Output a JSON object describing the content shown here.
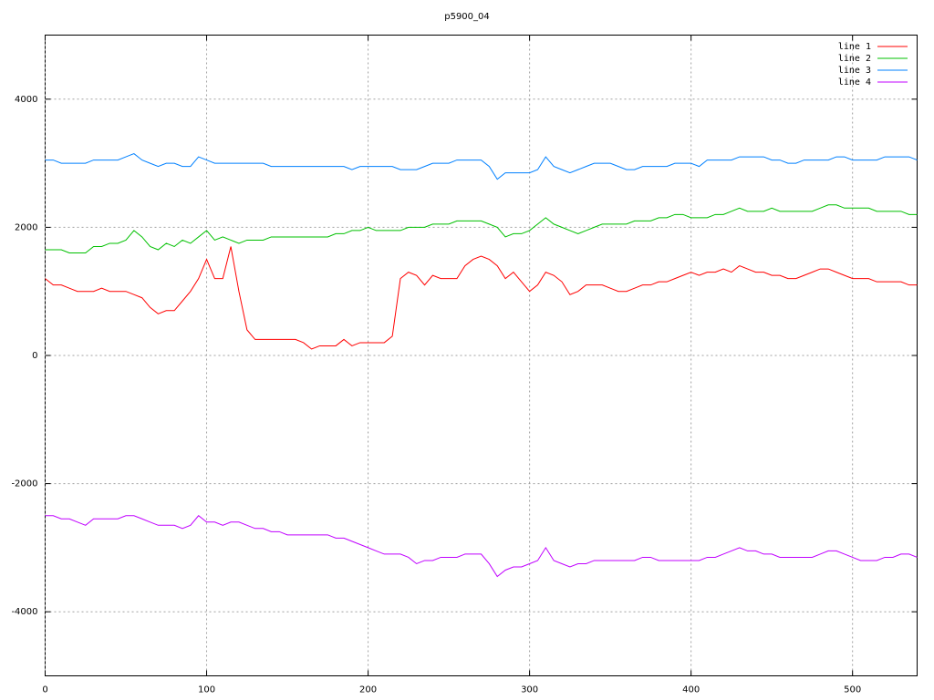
{
  "chart_data": {
    "type": "line",
    "title": "p5900_04",
    "x": [
      0,
      5,
      10,
      15,
      20,
      25,
      30,
      35,
      40,
      45,
      50,
      55,
      60,
      65,
      70,
      75,
      80,
      85,
      90,
      95,
      100,
      105,
      110,
      115,
      120,
      125,
      130,
      135,
      140,
      145,
      150,
      155,
      160,
      165,
      170,
      175,
      180,
      185,
      190,
      195,
      200,
      205,
      210,
      215,
      220,
      225,
      230,
      235,
      240,
      245,
      250,
      255,
      260,
      265,
      270,
      275,
      280,
      285,
      290,
      295,
      300,
      305,
      310,
      315,
      320,
      325,
      330,
      335,
      340,
      345,
      350,
      355,
      360,
      365,
      370,
      375,
      380,
      385,
      390,
      395,
      400,
      405,
      410,
      415,
      420,
      425,
      430,
      435,
      440,
      445,
      450,
      455,
      460,
      465,
      470,
      475,
      480,
      485,
      490,
      495,
      500,
      505,
      510,
      515,
      520,
      525,
      530,
      535,
      540
    ],
    "series": [
      {
        "name": "line 1",
        "color": "#ff0000",
        "values": [
          1200,
          1100,
          1100,
          1050,
          1000,
          1000,
          1000,
          1050,
          1000,
          1000,
          1000,
          950,
          900,
          750,
          650,
          700,
          700,
          850,
          1000,
          1200,
          1500,
          1200,
          1200,
          1700,
          1000,
          400,
          250,
          250,
          250,
          250,
          250,
          250,
          200,
          100,
          150,
          150,
          150,
          250,
          150,
          200,
          200,
          200,
          200,
          300,
          1200,
          1300,
          1250,
          1100,
          1250,
          1200,
          1200,
          1200,
          1400,
          1500,
          1550,
          1500,
          1400,
          1200,
          1300,
          1150,
          1000,
          1100,
          1300,
          1250,
          1150,
          950,
          1000,
          1100,
          1100,
          1100,
          1050,
          1000,
          1000,
          1050,
          1100,
          1100,
          1150,
          1150,
          1200,
          1250,
          1300,
          1250,
          1300,
          1300,
          1350,
          1300,
          1400,
          1350,
          1300,
          1300,
          1250,
          1250,
          1200,
          1200,
          1250,
          1300,
          1350,
          1350,
          1300,
          1250,
          1200,
          1200,
          1200,
          1150,
          1150,
          1150,
          1150,
          1100,
          1100
        ]
      },
      {
        "name": "line 2",
        "color": "#00c000",
        "values": [
          1650,
          1650,
          1650,
          1600,
          1600,
          1600,
          1700,
          1700,
          1750,
          1750,
          1800,
          1950,
          1850,
          1700,
          1650,
          1750,
          1700,
          1800,
          1750,
          1850,
          1950,
          1800,
          1850,
          1800,
          1750,
          1800,
          1800,
          1800,
          1850,
          1850,
          1850,
          1850,
          1850,
          1850,
          1850,
          1850,
          1900,
          1900,
          1950,
          1950,
          2000,
          1950,
          1950,
          1950,
          1950,
          2000,
          2000,
          2000,
          2050,
          2050,
          2050,
          2100,
          2100,
          2100,
          2100,
          2050,
          2000,
          1850,
          1900,
          1900,
          1950,
          2050,
          2150,
          2050,
          2000,
          1950,
          1900,
          1950,
          2000,
          2050,
          2050,
          2050,
          2050,
          2100,
          2100,
          2100,
          2150,
          2150,
          2200,
          2200,
          2150,
          2150,
          2150,
          2200,
          2200,
          2250,
          2300,
          2250,
          2250,
          2250,
          2300,
          2250,
          2250,
          2250,
          2250,
          2250,
          2300,
          2350,
          2350,
          2300,
          2300,
          2300,
          2300,
          2250,
          2250,
          2250,
          2250,
          2200,
          2200
        ]
      },
      {
        "name": "line 3",
        "color": "#0080ff",
        "values": [
          3050,
          3050,
          3000,
          3000,
          3000,
          3000,
          3050,
          3050,
          3050,
          3050,
          3100,
          3150,
          3050,
          3000,
          2950,
          3000,
          3000,
          2950,
          2950,
          3100,
          3050,
          3000,
          3000,
          3000,
          3000,
          3000,
          3000,
          3000,
          2950,
          2950,
          2950,
          2950,
          2950,
          2950,
          2950,
          2950,
          2950,
          2950,
          2900,
          2950,
          2950,
          2950,
          2950,
          2950,
          2900,
          2900,
          2900,
          2950,
          3000,
          3000,
          3000,
          3050,
          3050,
          3050,
          3050,
          2950,
          2750,
          2850,
          2850,
          2850,
          2850,
          2900,
          3100,
          2950,
          2900,
          2850,
          2900,
          2950,
          3000,
          3000,
          3000,
          2950,
          2900,
          2900,
          2950,
          2950,
          2950,
          2950,
          3000,
          3000,
          3000,
          2950,
          3050,
          3050,
          3050,
          3050,
          3100,
          3100,
          3100,
          3100,
          3050,
          3050,
          3000,
          3000,
          3050,
          3050,
          3050,
          3050,
          3100,
          3100,
          3050,
          3050,
          3050,
          3050,
          3100,
          3100,
          3100,
          3100,
          3050
        ]
      },
      {
        "name": "line 4",
        "color": "#c000ff",
        "values": [
          -2500,
          -2500,
          -2550,
          -2550,
          -2600,
          -2650,
          -2550,
          -2550,
          -2550,
          -2550,
          -2500,
          -2500,
          -2550,
          -2600,
          -2650,
          -2650,
          -2650,
          -2700,
          -2650,
          -2500,
          -2600,
          -2600,
          -2650,
          -2600,
          -2600,
          -2650,
          -2700,
          -2700,
          -2750,
          -2750,
          -2800,
          -2800,
          -2800,
          -2800,
          -2800,
          -2800,
          -2850,
          -2850,
          -2900,
          -2950,
          -3000,
          -3050,
          -3100,
          -3100,
          -3100,
          -3150,
          -3250,
          -3200,
          -3200,
          -3150,
          -3150,
          -3150,
          -3100,
          -3100,
          -3100,
          -3250,
          -3450,
          -3350,
          -3300,
          -3300,
          -3250,
          -3200,
          -3000,
          -3200,
          -3250,
          -3300,
          -3250,
          -3250,
          -3200,
          -3200,
          -3200,
          -3200,
          -3200,
          -3200,
          -3150,
          -3150,
          -3200,
          -3200,
          -3200,
          -3200,
          -3200,
          -3200,
          -3150,
          -3150,
          -3100,
          -3050,
          -3000,
          -3050,
          -3050,
          -3100,
          -3100,
          -3150,
          -3150,
          -3150,
          -3150,
          -3150,
          -3100,
          -3050,
          -3050,
          -3100,
          -3150,
          -3200,
          -3200,
          -3200,
          -3150,
          -3150,
          -3100,
          -3100,
          -3150
        ]
      }
    ],
    "xlim": [
      0,
      540
    ],
    "xticks": [
      0,
      100,
      200,
      300,
      400,
      500
    ],
    "ylim": [
      -5000,
      5000
    ],
    "yticks": [
      -4000,
      -2000,
      0,
      2000,
      4000
    ],
    "grid": true,
    "legend": "top-right"
  }
}
